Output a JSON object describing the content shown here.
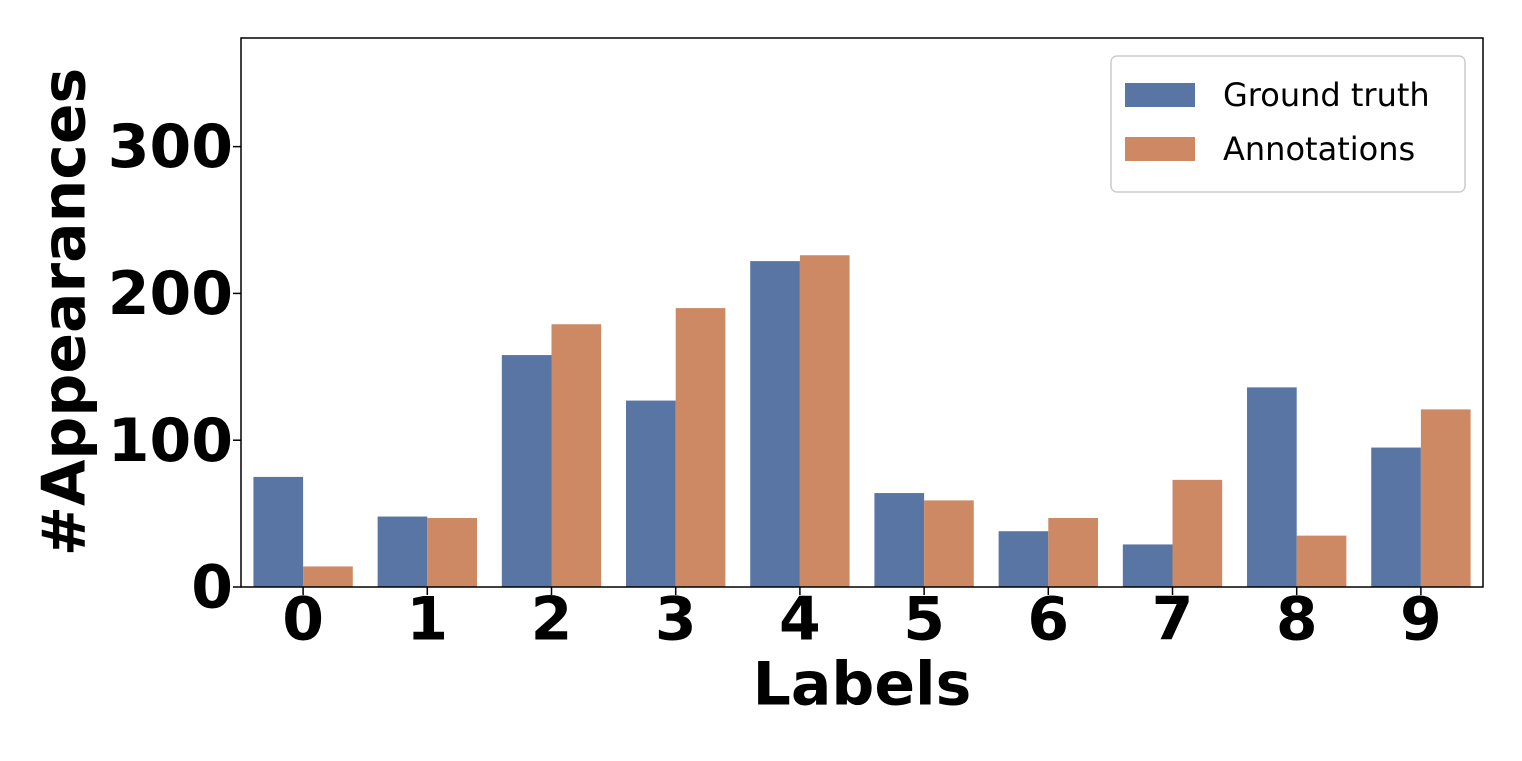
{
  "chart_data": {
    "type": "bar",
    "x_label": "Labels",
    "y_label": "#Appearances",
    "categories": [
      "0",
      "1",
      "2",
      "3",
      "4",
      "5",
      "6",
      "7",
      "8",
      "9"
    ],
    "series": [
      {
        "name": "Ground truth",
        "color": "#5975a4",
        "values": [
          75,
          48,
          158,
          127,
          222,
          64,
          38,
          29,
          136,
          95
        ]
      },
      {
        "name": "Annotations",
        "color": "#cc8963",
        "values": [
          14,
          47,
          179,
          190,
          226,
          59,
          47,
          73,
          35,
          121
        ]
      }
    ],
    "ylim": [
      0,
      374
    ],
    "yticks": [
      0,
      100,
      200,
      300
    ],
    "legend": "upper right"
  }
}
